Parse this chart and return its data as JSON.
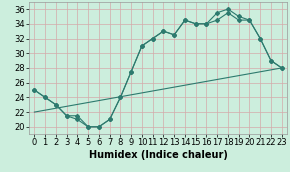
{
  "xlabel": "Humidex (Indice chaleur)",
  "background_color": "#cceedd",
  "grid_color": "#d4aaaa",
  "line_color": "#2d7a6e",
  "xlim": [
    -0.5,
    23.5
  ],
  "ylim": [
    19,
    37
  ],
  "yticks": [
    20,
    22,
    24,
    26,
    28,
    30,
    32,
    34,
    36
  ],
  "xticks": [
    0,
    1,
    2,
    3,
    4,
    5,
    6,
    7,
    8,
    9,
    10,
    11,
    12,
    13,
    14,
    15,
    16,
    17,
    18,
    19,
    20,
    21,
    22,
    23
  ],
  "series1_y": [
    25.0,
    24.0,
    23.0,
    21.5,
    21.5,
    20.0,
    20.0,
    21.0,
    24.0,
    27.5,
    31.0,
    32.0,
    33.0,
    32.5,
    34.5,
    34.0,
    34.0,
    34.5,
    35.5,
    34.5,
    34.5,
    32.0,
    29.0,
    28.0
  ],
  "series2_y": [
    25.0,
    24.0,
    23.0,
    21.5,
    21.0,
    20.0,
    20.0,
    21.0,
    24.0,
    27.5,
    31.0,
    32.0,
    33.0,
    32.5,
    34.5,
    34.0,
    34.0,
    35.5,
    36.0,
    35.0,
    34.5,
    32.0,
    29.0,
    28.0
  ],
  "series3_x": [
    0,
    23
  ],
  "series3_y": [
    22.0,
    28.0
  ],
  "xlabel_fontsize": 7,
  "tick_fontsize": 6
}
